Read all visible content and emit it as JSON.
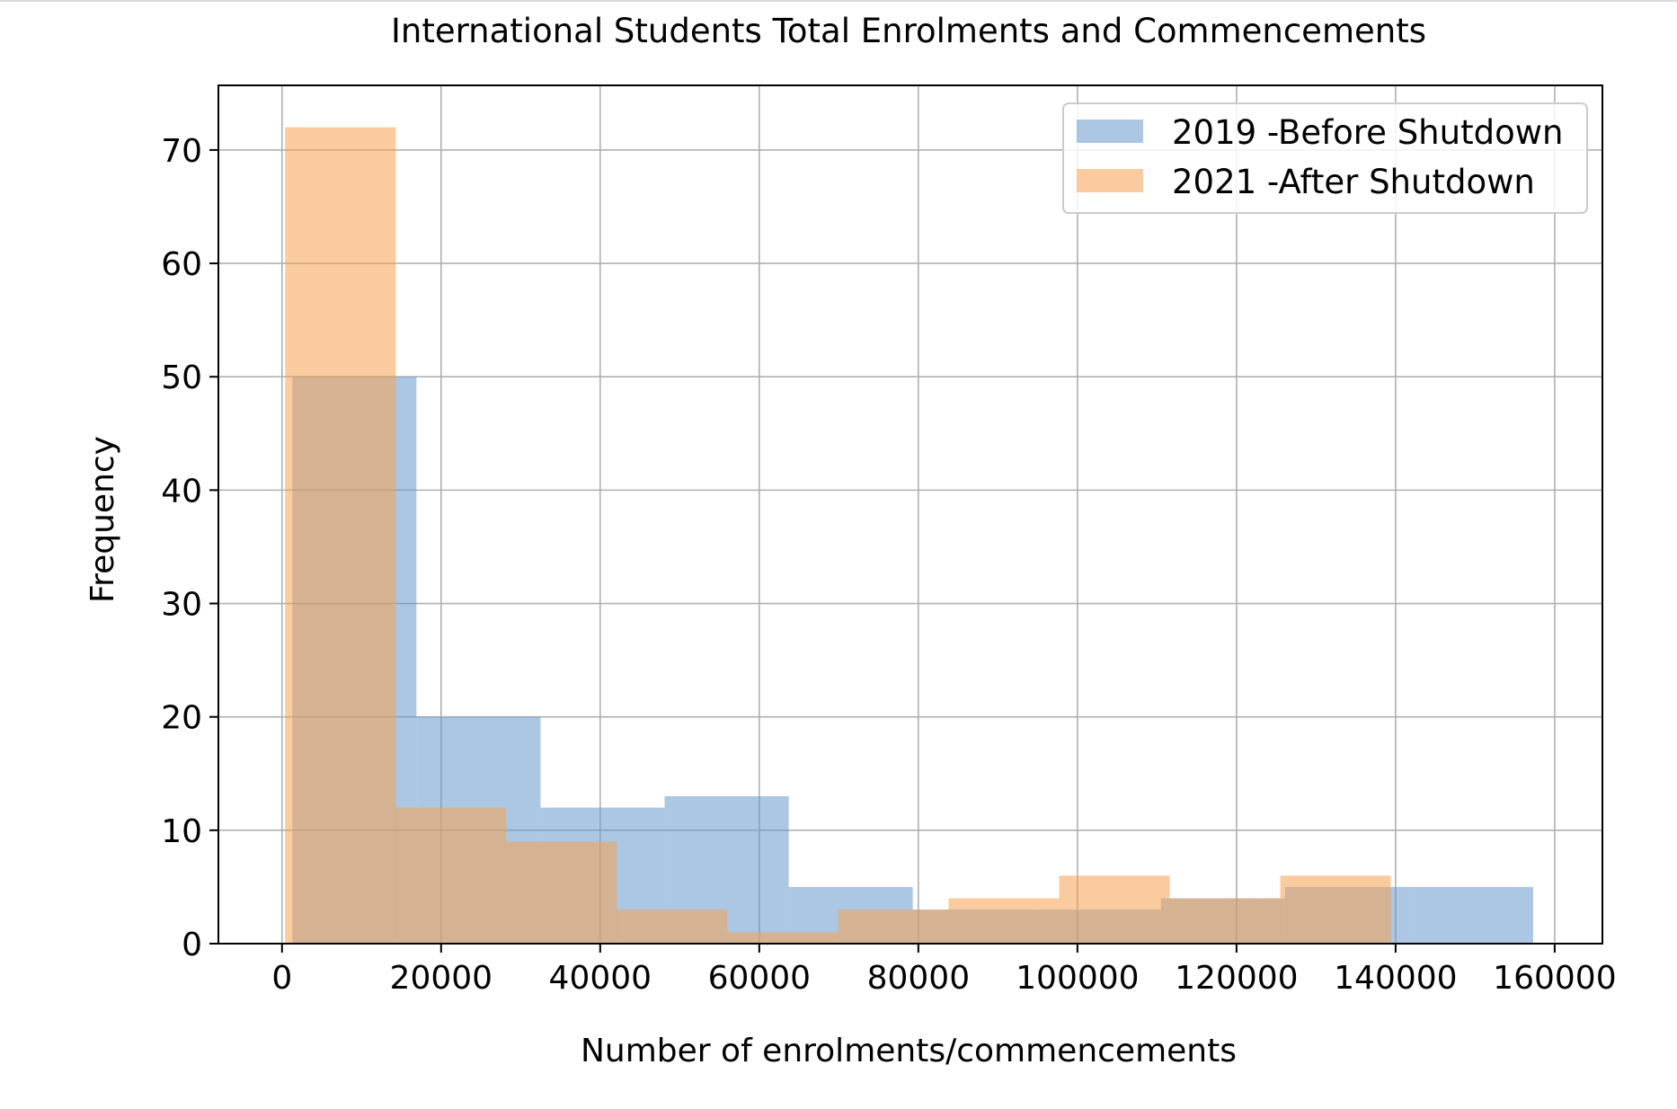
{
  "chart_data": {
    "type": "bar",
    "subtype": "overlaid-histogram",
    "title": "International Students Total Enrolments and Commencements",
    "xlabel": "Number of enrolments/commencements",
    "ylabel": "Frequency",
    "xlim": [
      -8000,
      166000
    ],
    "ylim": [
      0,
      75.7
    ],
    "xticks": [
      0,
      20000,
      40000,
      60000,
      80000,
      100000,
      120000,
      140000,
      160000
    ],
    "yticks": [
      0,
      10,
      20,
      30,
      40,
      50,
      60,
      70
    ],
    "grid": true,
    "legend_position": "top-right",
    "series": [
      {
        "name": "2019 -Before Shutdown",
        "color": "#6699cc",
        "opacity": 0.55,
        "bin_edges": [
          1300,
          16900,
          32500,
          48100,
          63700,
          79300,
          94900,
          110500,
          126100,
          141700,
          157300
        ],
        "values": [
          50,
          20,
          12,
          13,
          5,
          3,
          3,
          4,
          5,
          5
        ]
      },
      {
        "name": "2021 -After Shutdown",
        "color": "#f5a050",
        "opacity": 0.55,
        "bin_edges": [
          400,
          14300,
          28200,
          42100,
          56000,
          69900,
          83800,
          97700,
          111600,
          125500,
          139400
        ],
        "values": [
          72,
          12,
          9,
          3,
          1,
          3,
          4,
          6,
          4,
          6
        ]
      }
    ]
  }
}
